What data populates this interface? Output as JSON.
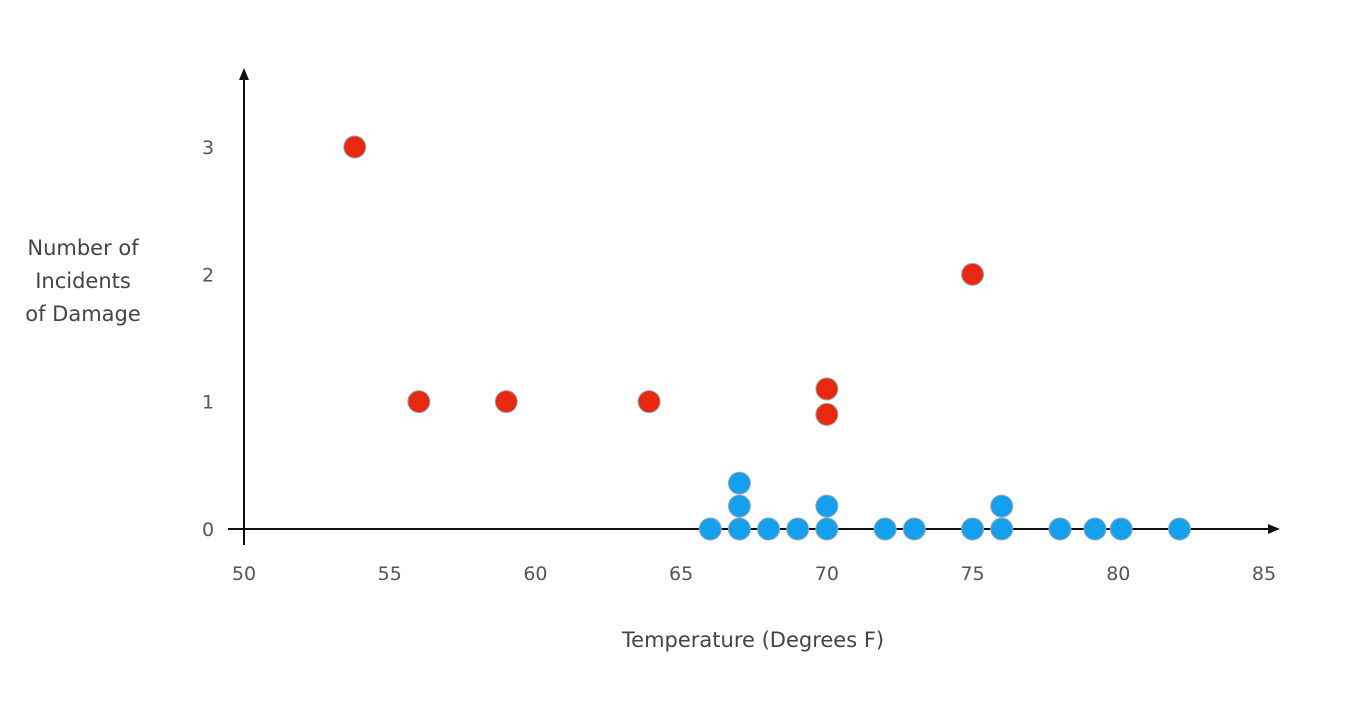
{
  "chart_data": {
    "type": "scatter",
    "title": "",
    "xlabel": "Temperature (Degrees F)",
    "ylabel_lines": [
      "Number of",
      "Incidents",
      "of Damage"
    ],
    "xlim": [
      50,
      85
    ],
    "ylim": [
      0,
      3
    ],
    "xticks": [
      "50",
      "55",
      "60",
      "65",
      "70",
      "75",
      "80",
      "85"
    ],
    "yticks": [
      "0",
      "1",
      "2",
      "3"
    ],
    "grid": false,
    "series": [
      {
        "color": "#e8290f",
        "points": [
          {
            "x": 53.8,
            "y": 3
          },
          {
            "x": 56,
            "y": 1
          },
          {
            "x": 59,
            "y": 1
          },
          {
            "x": 63.9,
            "y": 1
          },
          {
            "x": 70,
            "y": 1.1
          },
          {
            "x": 70,
            "y": 0.9
          },
          {
            "x": 75,
            "y": 2
          }
        ]
      },
      {
        "color": "#14a0ec",
        "points": [
          {
            "x": 66,
            "y": 0
          },
          {
            "x": 67,
            "y": 0
          },
          {
            "x": 67,
            "y": 0.18
          },
          {
            "x": 67,
            "y": 0.36
          },
          {
            "x": 68,
            "y": 0
          },
          {
            "x": 69,
            "y": 0
          },
          {
            "x": 70,
            "y": 0
          },
          {
            "x": 70,
            "y": 0.18
          },
          {
            "x": 72,
            "y": 0
          },
          {
            "x": 73,
            "y": 0
          },
          {
            "x": 75,
            "y": 0
          },
          {
            "x": 76,
            "y": 0
          },
          {
            "x": 76,
            "y": 0.18
          },
          {
            "x": 78,
            "y": 0
          },
          {
            "x": 79.2,
            "y": 0
          },
          {
            "x": 80.1,
            "y": 0
          },
          {
            "x": 82.1,
            "y": 0
          }
        ]
      }
    ]
  }
}
